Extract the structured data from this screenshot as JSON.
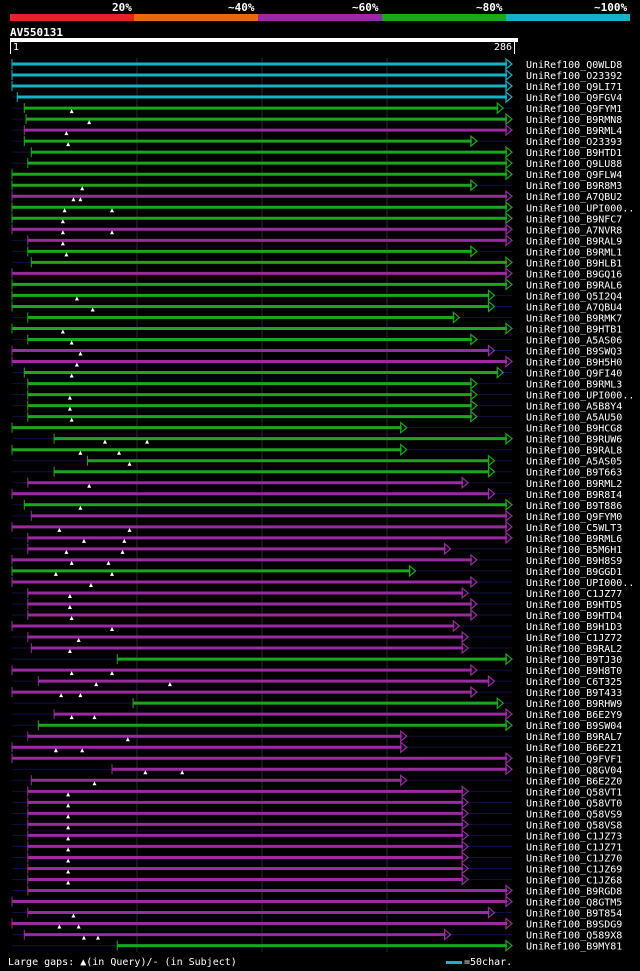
{
  "scale": {
    "labels": [
      "20%",
      "~40%",
      "~60%",
      "~80%",
      "~100%"
    ],
    "colors": [
      "#e8202a",
      "#e86a10",
      "#9a2aa0",
      "#1aa81a",
      "#10b4c4"
    ]
  },
  "query": {
    "name": "AV550131",
    "start": "1",
    "end": "286",
    "length": 286
  },
  "footer": {
    "gaps_text": "Large gaps: ▲(in Query)/- (in Subject)",
    "scale_text": "=50char.",
    "scale_color": "#10b4c4"
  },
  "chart_data": {
    "type": "alignment",
    "title": "AV550131",
    "query_length": 286,
    "identity_colors": {
      "20": "#e8202a",
      "40": "#e86a10",
      "60": "#9a2aa0",
      "80": "#1aa81a",
      "100": "#10b4c4"
    },
    "hits": [
      {
        "label": "UniRef100_Q0WLD8",
        "start": 1,
        "end": 286,
        "identity": 100,
        "arrow": true,
        "gaps": []
      },
      {
        "label": "UniRef100_O23392",
        "start": 1,
        "end": 286,
        "identity": 100,
        "arrow": true,
        "gaps": []
      },
      {
        "label": "UniRef100_Q9LI71",
        "start": 1,
        "end": 286,
        "identity": 100,
        "arrow": true,
        "gaps": []
      },
      {
        "label": "UniRef100_Q9FGV4",
        "start": 4,
        "end": 286,
        "identity": 100,
        "arrow": true,
        "gaps": []
      },
      {
        "label": "UniRef100_Q9FYM1",
        "start": 8,
        "end": 281,
        "identity": 80,
        "arrow": true,
        "gaps": [
          35
        ]
      },
      {
        "label": "UniRef100_B9RMN8",
        "start": 9,
        "end": 286,
        "identity": 80,
        "arrow": true,
        "gaps": [
          45
        ]
      },
      {
        "label": "UniRef100_B9RML4",
        "start": 8,
        "end": 286,
        "identity": 60,
        "arrow": true,
        "gaps": [
          32
        ]
      },
      {
        "label": "UniRef100_O23393",
        "start": 8,
        "end": 266,
        "identity": 80,
        "arrow": true,
        "gaps": [
          33
        ]
      },
      {
        "label": "UniRef100_B9HTD1",
        "start": 12,
        "end": 286,
        "identity": 80,
        "arrow": true,
        "gaps": []
      },
      {
        "label": "UniRef100_Q9LU88",
        "start": 10,
        "end": 286,
        "identity": 80,
        "arrow": true,
        "gaps": []
      },
      {
        "label": "UniRef100_Q9FLW4",
        "start": 1,
        "end": 286,
        "identity": 80,
        "arrow": true,
        "gaps": []
      },
      {
        "label": "UniRef100_B9R8M3",
        "start": 1,
        "end": 266,
        "identity": 80,
        "arrow": true,
        "gaps": [
          41
        ]
      },
      {
        "label": "UniRef100_A7QBU2",
        "start": 1,
        "end": 286,
        "identity": 60,
        "arrow": true,
        "gaps": [
          36,
          40
        ]
      },
      {
        "label": "UniRef100_UPI000..",
        "start": 1,
        "end": 286,
        "identity": 80,
        "arrow": true,
        "gaps": [
          31,
          58
        ]
      },
      {
        "label": "UniRef100_B9NFC7",
        "start": 1,
        "end": 286,
        "identity": 80,
        "arrow": true,
        "gaps": [
          30
        ]
      },
      {
        "label": "UniRef100_A7NVR8",
        "start": 1,
        "end": 286,
        "identity": 60,
        "arrow": true,
        "gaps": [
          30,
          58
        ]
      },
      {
        "label": "UniRef100_B9RAL9",
        "start": 10,
        "end": 286,
        "identity": 60,
        "arrow": true,
        "gaps": [
          30
        ]
      },
      {
        "label": "UniRef100_B9RML1",
        "start": 10,
        "end": 266,
        "identity": 80,
        "arrow": true,
        "gaps": [
          32
        ]
      },
      {
        "label": "UniRef100_B9HLB1",
        "start": 12,
        "end": 286,
        "identity": 80,
        "arrow": true,
        "gaps": []
      },
      {
        "label": "UniRef100_B9GQ16",
        "start": 1,
        "end": 286,
        "identity": 60,
        "arrow": true,
        "gaps": []
      },
      {
        "label": "UniRef100_B9RAL6",
        "start": 1,
        "end": 286,
        "identity": 80,
        "arrow": true,
        "gaps": []
      },
      {
        "label": "UniRef100_Q5I2Q4",
        "start": 1,
        "end": 276,
        "identity": 80,
        "arrow": true,
        "gaps": [
          38
        ]
      },
      {
        "label": "UniRef100_A7QBU4",
        "start": 1,
        "end": 276,
        "identity": 80,
        "arrow": true,
        "gaps": [
          47
        ]
      },
      {
        "label": "UniRef100_B9RMK7",
        "start": 10,
        "end": 256,
        "identity": 80,
        "arrow": true,
        "gaps": []
      },
      {
        "label": "UniRef100_B9HTB1",
        "start": 1,
        "end": 286,
        "identity": 80,
        "arrow": true,
        "gaps": [
          30
        ]
      },
      {
        "label": "UniRef100_A5AS06",
        "start": 10,
        "end": 266,
        "identity": 80,
        "arrow": true,
        "gaps": [
          35
        ]
      },
      {
        "label": "UniRef100_B9SWQ3",
        "start": 1,
        "end": 276,
        "identity": 60,
        "arrow": true,
        "gaps": [
          40
        ]
      },
      {
        "label": "UniRef100_B9H5H0",
        "start": 1,
        "end": 286,
        "identity": 60,
        "arrow": true,
        "gaps": [
          38
        ]
      },
      {
        "label": "UniRef100_Q9FI40",
        "start": 8,
        "end": 281,
        "identity": 80,
        "arrow": true,
        "gaps": [
          35
        ]
      },
      {
        "label": "UniRef100_B9RML3",
        "start": 10,
        "end": 266,
        "identity": 80,
        "arrow": true,
        "gaps": []
      },
      {
        "label": "UniRef100_UPI000..",
        "start": 10,
        "end": 266,
        "identity": 80,
        "arrow": true,
        "gaps": [
          34
        ]
      },
      {
        "label": "UniRef100_A5B8Y4",
        "start": 10,
        "end": 266,
        "identity": 80,
        "arrow": true,
        "gaps": [
          34
        ]
      },
      {
        "label": "UniRef100_A5AU50",
        "start": 10,
        "end": 266,
        "identity": 80,
        "arrow": true,
        "gaps": [
          35
        ]
      },
      {
        "label": "UniRef100_B9HCG8",
        "start": 1,
        "end": 226,
        "identity": 80,
        "arrow": true,
        "gaps": []
      },
      {
        "label": "UniRef100_B9RUW6",
        "start": 25,
        "end": 286,
        "identity": 80,
        "arrow": true,
        "gaps": [
          54,
          78
        ]
      },
      {
        "label": "UniRef100_B9RAL8",
        "start": 1,
        "end": 226,
        "identity": 80,
        "arrow": true,
        "gaps": [
          40,
          62
        ]
      },
      {
        "label": "UniRef100_A5AS05",
        "start": 44,
        "end": 276,
        "identity": 80,
        "arrow": true,
        "gaps": [
          68
        ]
      },
      {
        "label": "UniRef100_B9T663",
        "start": 25,
        "end": 276,
        "identity": 80,
        "arrow": true,
        "gaps": []
      },
      {
        "label": "UniRef100_B9RML2",
        "start": 10,
        "end": 261,
        "identity": 60,
        "arrow": true,
        "gaps": [
          45
        ]
      },
      {
        "label": "UniRef100_B9R8I4",
        "start": 1,
        "end": 276,
        "identity": 60,
        "arrow": true,
        "gaps": []
      },
      {
        "label": "UniRef100_B9T886",
        "start": 8,
        "end": 286,
        "identity": 80,
        "arrow": true,
        "gaps": [
          40
        ]
      },
      {
        "label": "UniRef100_Q9FYM0",
        "start": 12,
        "end": 286,
        "identity": 60,
        "arrow": true,
        "gaps": []
      },
      {
        "label": "UniRef100_C5WLT3",
        "start": 1,
        "end": 286,
        "identity": 60,
        "arrow": true,
        "gaps": [
          28,
          68
        ]
      },
      {
        "label": "UniRef100_B9RML6",
        "start": 10,
        "end": 286,
        "identity": 60,
        "arrow": true,
        "gaps": [
          42,
          65
        ]
      },
      {
        "label": "UniRef100_B5M6H1",
        "start": 10,
        "end": 251,
        "identity": 60,
        "arrow": true,
        "gaps": [
          32,
          64
        ]
      },
      {
        "label": "UniRef100_B9H8S9",
        "start": 1,
        "end": 266,
        "identity": 60,
        "arrow": true,
        "gaps": [
          35,
          56
        ]
      },
      {
        "label": "UniRef100_B9GGD1",
        "start": 1,
        "end": 231,
        "identity": 80,
        "arrow": true,
        "gaps": [
          26,
          58
        ]
      },
      {
        "label": "UniRef100_UPI000..",
        "start": 1,
        "end": 266,
        "identity": 60,
        "arrow": true,
        "gaps": [
          46
        ]
      },
      {
        "label": "UniRef100_C1JZ77",
        "start": 10,
        "end": 261,
        "identity": 60,
        "arrow": true,
        "gaps": [
          34
        ]
      },
      {
        "label": "UniRef100_B9HTD5",
        "start": 10,
        "end": 266,
        "identity": 60,
        "arrow": true,
        "gaps": [
          34
        ]
      },
      {
        "label": "UniRef100_B9HTD4",
        "start": 10,
        "end": 266,
        "identity": 60,
        "arrow": true,
        "gaps": [
          35
        ]
      },
      {
        "label": "UniRef100_B9H1D3",
        "start": 1,
        "end": 256,
        "identity": 60,
        "arrow": true,
        "gaps": [
          58
        ]
      },
      {
        "label": "UniRef100_C1JZ72",
        "start": 10,
        "end": 261,
        "identity": 60,
        "arrow": true,
        "gaps": [
          39
        ]
      },
      {
        "label": "UniRef100_B9RAL2",
        "start": 12,
        "end": 261,
        "identity": 60,
        "arrow": true,
        "gaps": [
          34
        ]
      },
      {
        "label": "UniRef100_B9TJ30",
        "start": 61,
        "end": 286,
        "identity": 80,
        "arrow": true,
        "gaps": []
      },
      {
        "label": "UniRef100_B9H8T0",
        "start": 1,
        "end": 266,
        "identity": 60,
        "arrow": true,
        "gaps": [
          35,
          58
        ]
      },
      {
        "label": "UniRef100_C6T325",
        "start": 16,
        "end": 276,
        "identity": 60,
        "arrow": true,
        "gaps": [
          49,
          91
        ]
      },
      {
        "label": "UniRef100_B9T433",
        "start": 1,
        "end": 266,
        "identity": 60,
        "arrow": true,
        "gaps": [
          29,
          40
        ]
      },
      {
        "label": "UniRef100_B9RHW9",
        "start": 70,
        "end": 281,
        "identity": 80,
        "arrow": true,
        "gaps": []
      },
      {
        "label": "UniRef100_B6E2Y9",
        "start": 25,
        "end": 286,
        "identity": 60,
        "arrow": true,
        "gaps": [
          35,
          48
        ]
      },
      {
        "label": "UniRef100_B9SW04",
        "start": 16,
        "end": 286,
        "identity": 80,
        "arrow": true,
        "gaps": []
      },
      {
        "label": "UniRef100_B9RAL7",
        "start": 10,
        "end": 226,
        "identity": 60,
        "arrow": true,
        "gaps": [
          67
        ]
      },
      {
        "label": "UniRef100_B6E2Z1",
        "start": 1,
        "end": 226,
        "identity": 60,
        "arrow": true,
        "gaps": [
          26,
          41
        ]
      },
      {
        "label": "UniRef100_Q9FVF1",
        "start": 1,
        "end": 286,
        "identity": 60,
        "arrow": true,
        "gaps": []
      },
      {
        "label": "UniRef100_Q8GV04",
        "start": 58,
        "end": 286,
        "identity": 60,
        "arrow": true,
        "gaps": [
          77,
          98
        ]
      },
      {
        "label": "UniRef100_B6E2Z0",
        "start": 12,
        "end": 226,
        "identity": 60,
        "arrow": true,
        "gaps": [
          48
        ]
      },
      {
        "label": "UniRef100_Q58VT1",
        "start": 10,
        "end": 261,
        "identity": 60,
        "arrow": true,
        "gaps": [
          33
        ]
      },
      {
        "label": "UniRef100_Q58VT0",
        "start": 10,
        "end": 261,
        "identity": 60,
        "arrow": true,
        "gaps": [
          33
        ]
      },
      {
        "label": "UniRef100_Q58VS9",
        "start": 10,
        "end": 261,
        "identity": 60,
        "arrow": true,
        "gaps": [
          33
        ]
      },
      {
        "label": "UniRef100_Q58VS8",
        "start": 10,
        "end": 261,
        "identity": 60,
        "arrow": true,
        "gaps": [
          33
        ]
      },
      {
        "label": "UniRef100_C1JZ73",
        "start": 10,
        "end": 261,
        "identity": 60,
        "arrow": true,
        "gaps": [
          33
        ]
      },
      {
        "label": "UniRef100_C1JZ71",
        "start": 10,
        "end": 261,
        "identity": 60,
        "arrow": true,
        "gaps": [
          33
        ]
      },
      {
        "label": "UniRef100_C1JZ70",
        "start": 10,
        "end": 261,
        "identity": 60,
        "arrow": true,
        "gaps": [
          33
        ]
      },
      {
        "label": "UniRef100_C1JZ69",
        "start": 10,
        "end": 261,
        "identity": 60,
        "arrow": true,
        "gaps": [
          33
        ]
      },
      {
        "label": "UniRef100_C1JZ68",
        "start": 10,
        "end": 261,
        "identity": 60,
        "arrow": true,
        "gaps": [
          33
        ]
      },
      {
        "label": "UniRef100_B9RGD8",
        "start": 10,
        "end": 286,
        "identity": 60,
        "arrow": true,
        "gaps": []
      },
      {
        "label": "UniRef100_Q8GTM5",
        "start": 1,
        "end": 286,
        "identity": 60,
        "arrow": true,
        "gaps": []
      },
      {
        "label": "UniRef100_B9T854",
        "start": 10,
        "end": 276,
        "identity": 60,
        "arrow": true,
        "gaps": [
          36
        ]
      },
      {
        "label": "UniRef100_B9SDG9",
        "start": 1,
        "end": 286,
        "identity": 60,
        "arrow": true,
        "gaps": [
          28,
          39
        ]
      },
      {
        "label": "UniRef100_Q589X8",
        "start": 8,
        "end": 251,
        "identity": 60,
        "arrow": true,
        "gaps": [
          42,
          50
        ]
      },
      {
        "label": "UniRef100_B9MY81",
        "start": 61,
        "end": 286,
        "identity": 80,
        "arrow": true,
        "gaps": []
      }
    ]
  }
}
